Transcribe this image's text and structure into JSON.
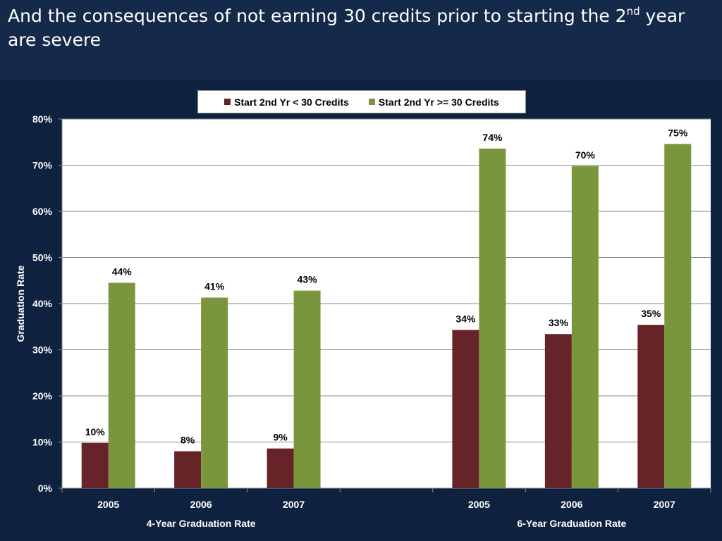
{
  "slide": {
    "title_main": "And the consequences of not earning 30 credits prior to starting the 2",
    "title_sup": "nd",
    "title_tail": " year are severe"
  },
  "colors": {
    "series_low": "#672428",
    "series_high": "#7a963c",
    "background": "#0e223f",
    "title_bg": "#152a4a"
  },
  "chart_data": {
    "type": "bar",
    "ylabel": "Graduation Rate",
    "ylim": [
      0,
      80
    ],
    "yticks": [
      "0%",
      "10%",
      "20%",
      "30%",
      "40%",
      "50%",
      "60%",
      "70%",
      "80%"
    ],
    "grid": true,
    "legend_position": "top",
    "groups": [
      {
        "label": "4-Year Graduation Rate",
        "categories": [
          "2005",
          "2006",
          "2007"
        ]
      },
      {
        "label": "6-Year Graduation Rate",
        "categories": [
          "2005",
          "2006",
          "2007"
        ]
      }
    ],
    "series": [
      {
        "name": "Start 2nd Yr < 30 Credits",
        "color": "#672428",
        "values": [
          9.8,
          8.0,
          8.6,
          34.3,
          33.4,
          35.4
        ],
        "labels": [
          "10%",
          "8%",
          "9%",
          "34%",
          "33%",
          "35%"
        ]
      },
      {
        "name": "Start 2nd Yr >= 30 Credits",
        "color": "#7a963c",
        "values": [
          44.5,
          41.3,
          42.8,
          73.6,
          69.8,
          74.6
        ],
        "labels": [
          "44%",
          "41%",
          "43%",
          "74%",
          "70%",
          "75%"
        ]
      }
    ]
  }
}
